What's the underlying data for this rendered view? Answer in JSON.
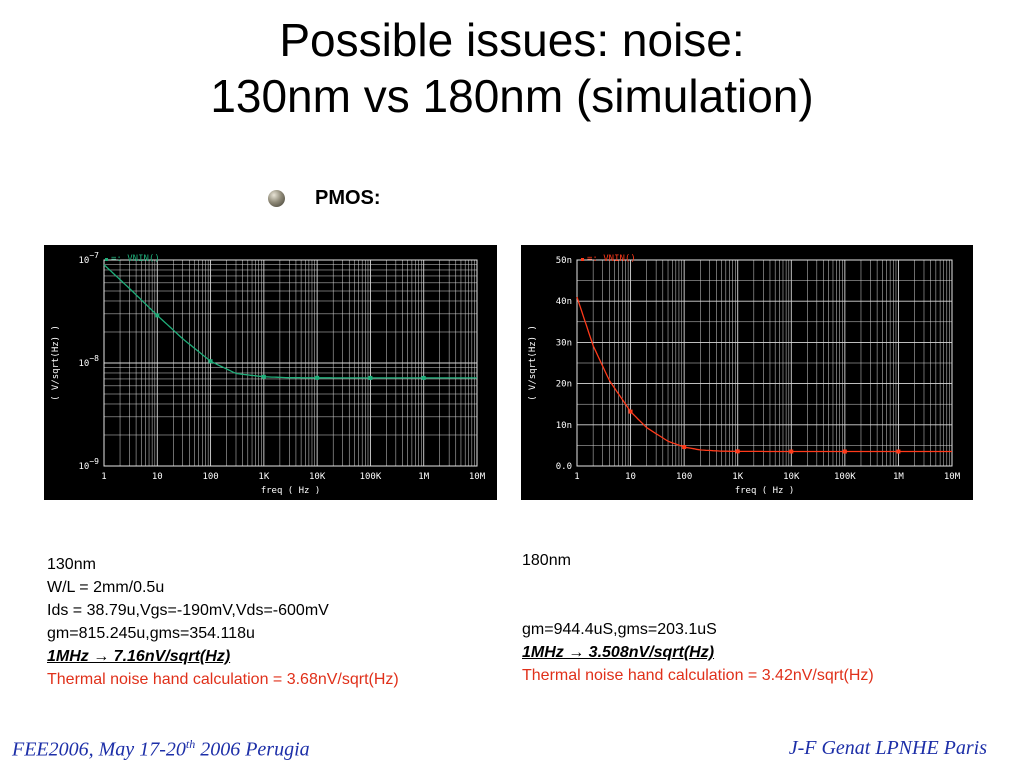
{
  "slide": {
    "title_line1": "Possible issues:  noise:",
    "title_line2": "130nm vs 180nm   (simulation)",
    "bullet": "PMOS:"
  },
  "chart_data": [
    {
      "type": "line",
      "legend": "VNIN()",
      "ylabel": "( V/sqrt(Hz) )",
      "xlabel": "freq ( Hz )",
      "x_scale": "log",
      "y_scale": "log",
      "xlim": [
        1,
        10000000
      ],
      "ylim": [
        1e-09,
        1e-07
      ],
      "x_ticks": [
        {
          "v": 1,
          "label": "1"
        },
        {
          "v": 10,
          "label": "10"
        },
        {
          "v": 100,
          "label": "100"
        },
        {
          "v": 1000,
          "label": "1K"
        },
        {
          "v": 10000,
          "label": "10K"
        },
        {
          "v": 100000,
          "label": "100K"
        },
        {
          "v": 1000000,
          "label": "1M"
        },
        {
          "v": 10000000,
          "label": "10M"
        }
      ],
      "y_ticks": [
        {
          "v": 1e-07,
          "base": "10",
          "exp": "−7"
        },
        {
          "v": 1e-08,
          "base": "10",
          "exp": "−8"
        },
        {
          "v": 1e-09,
          "base": "10",
          "exp": "−9"
        }
      ],
      "grid": true,
      "color": "#1fae7a",
      "series": [
        {
          "x": [
            1,
            3,
            10,
            30,
            100,
            300,
            1000,
            3000,
            10000,
            100000,
            1000000,
            10000000
          ],
          "y": [
            9e-08,
            5.3e-08,
            2.9e-08,
            1.72e-08,
            1.04e-08,
            7.9e-09,
            7.35e-09,
            7.2e-09,
            7.18e-09,
            7.16e-09,
            7.16e-09,
            7.16e-09
          ]
        }
      ],
      "markers_x": [
        10,
        100,
        1000,
        10000,
        100000,
        1000000
      ]
    },
    {
      "type": "line",
      "legend": "VNIN()",
      "ylabel": "( V/sqrt(Hz) )",
      "xlabel": "freq ( Hz )",
      "x_scale": "log",
      "y_scale": "linear",
      "xlim": [
        1,
        10000000
      ],
      "ylim": [
        0,
        5e-08
      ],
      "x_ticks": [
        {
          "v": 1,
          "label": "1"
        },
        {
          "v": 10,
          "label": "10"
        },
        {
          "v": 100,
          "label": "100"
        },
        {
          "v": 1000,
          "label": "1K"
        },
        {
          "v": 10000,
          "label": "10K"
        },
        {
          "v": 100000,
          "label": "100K"
        },
        {
          "v": 1000000,
          "label": "1M"
        },
        {
          "v": 10000000,
          "label": "10M"
        }
      ],
      "y_ticks": [
        {
          "v": 5e-08,
          "label": "50n"
        },
        {
          "v": 4e-08,
          "label": "40n"
        },
        {
          "v": 3e-08,
          "label": "30n"
        },
        {
          "v": 2e-08,
          "label": "20n"
        },
        {
          "v": 1e-08,
          "label": "10n"
        },
        {
          "v": 0,
          "label": "0.0"
        }
      ],
      "grid": true,
      "color": "#ff3a1a",
      "series": [
        {
          "x": [
            1,
            2,
            4,
            10,
            20,
            50,
            100,
            200,
            500,
            1000,
            10000,
            100000,
            1000000,
            10000000
          ],
          "y": [
            4.1e-08,
            2.92e-08,
            2.08e-08,
            1.32e-08,
            9.3e-09,
            6e-09,
            4.6e-09,
            3.9e-09,
            3.6e-09,
            3.55e-09,
            3.51e-09,
            3.508e-09,
            3.508e-09,
            3.508e-09
          ]
        }
      ],
      "markers_x": [
        10,
        100,
        1000,
        10000,
        100000,
        1000000
      ]
    }
  ],
  "info_left": {
    "lines": [
      "130nm",
      "W/L = 2mm/0.5u",
      "Ids = 38.79u,Vgs=-190mV,Vds=-600mV",
      "gm=815.245u,gms=354.118u"
    ],
    "result": "1MHz → 7.16nV/sqrt(Hz)",
    "thermal": "Thermal noise hand calculation = 3.68nV/sqrt(Hz)"
  },
  "info_right": {
    "lines": [
      "180nm",
      "",
      "",
      "gm=944.4uS,gms=203.1uS"
    ],
    "result": "1MHz → 3.508nV/sqrt(Hz)",
    "thermal": "Thermal noise hand calculation = 3.42nV/sqrt(Hz)"
  },
  "footer": {
    "left_a": "FEE2006, May 17-20",
    "left_sup": "th",
    "left_b": " 2006 Perugia",
    "right": "J-F Genat LPNHE Paris"
  }
}
